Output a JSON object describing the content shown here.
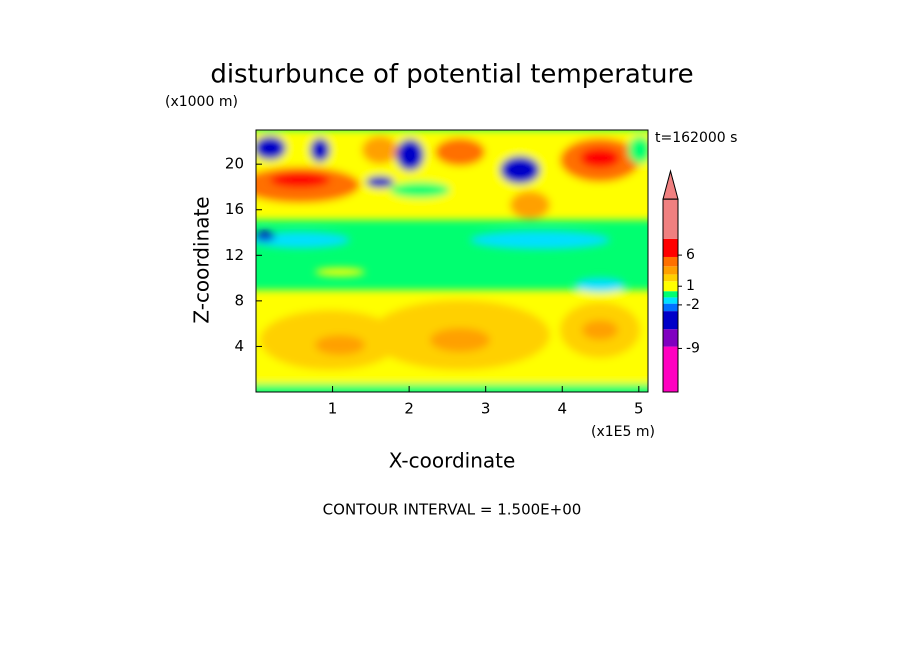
{
  "chart_data": {
    "type": "contour",
    "title": "disturbunce of potential temperature",
    "ylabel_unit": "(x1000 m)",
    "xlabel_unit": "(x1E5 m)",
    "xlabel": "X-coordinate",
    "ylabel": "Z-coordinate",
    "annotation": "t=162000 s",
    "footer": "CONTOUR INTERVAL = 1.500E+00",
    "xlim": [
      0,
      5.12
    ],
    "xticks": [
      1,
      2,
      3,
      4,
      5
    ],
    "ylim": [
      0,
      23
    ],
    "yticks": [
      4,
      8,
      12,
      16,
      20
    ],
    "colorbar": {
      "clim": [
        -16,
        15.5
      ],
      "ticks": [
        6,
        1,
        -2,
        -9
      ],
      "levels": [
        -16,
        -8.7,
        -5.9,
        -3,
        -1.8,
        -0.8,
        0.2,
        1.8,
        2.9,
        4.2,
        5.7,
        8.6,
        15
      ],
      "colors": [
        "#ff00c0",
        "#8000c0",
        "#0000c8",
        "#0070ff",
        "#00e0ff",
        "#00ff70",
        "#ffff00",
        "#ffd000",
        "#ffa000",
        "#ff7000",
        "#ff0000",
        "#f08080"
      ]
    }
  }
}
